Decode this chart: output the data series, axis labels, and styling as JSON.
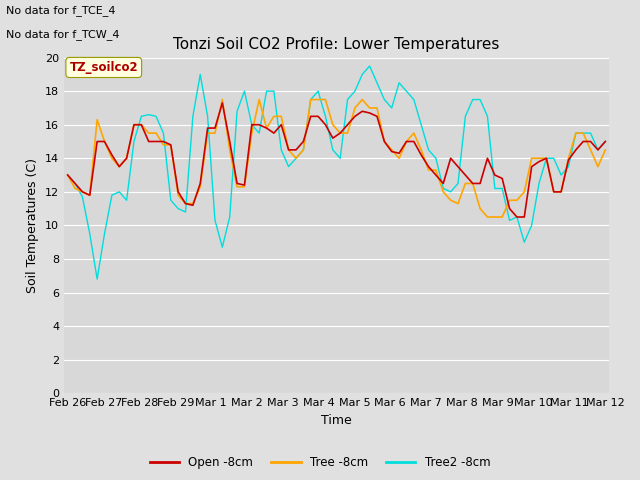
{
  "title": "Tonzi Soil CO2 Profile: Lower Temperatures",
  "ylabel": "Soil Temperatures (C)",
  "xlabel": "Time",
  "annotation_line1": "No data for f_TCE_4",
  "annotation_line2": "No data for f_TCW_4",
  "legend_label_box": "TZ_soilco2",
  "legend_entries": [
    "Open -8cm",
    "Tree -8cm",
    "Tree2 -8cm"
  ],
  "legend_colors": [
    "#cc0000",
    "#ffa500",
    "#00dddd"
  ],
  "ylim": [
    0,
    20
  ],
  "yticks": [
    0,
    2,
    4,
    6,
    8,
    10,
    12,
    14,
    16,
    18,
    20
  ],
  "xtick_labels": [
    "Feb 26",
    "Feb 27",
    "Feb 28",
    "Feb 29",
    "Mar 1",
    "Mar 2",
    "Mar 3",
    "Mar 4",
    "Mar 5",
    "Mar 6",
    "Mar 7",
    "Mar 8",
    "Mar 9",
    "Mar 10",
    "Mar 11",
    "Mar 12"
  ],
  "background_color": "#e0e0e0",
  "plot_bg_color": "#d8d8d8",
  "grid_color": "#ffffff",
  "open_8cm": [
    13.0,
    12.5,
    12.0,
    11.8,
    15.0,
    15.0,
    14.2,
    13.5,
    14.0,
    16.0,
    16.0,
    15.0,
    15.0,
    15.0,
    14.8,
    12.0,
    11.3,
    11.2,
    12.5,
    15.8,
    15.8,
    17.3,
    15.0,
    12.5,
    12.4,
    16.0,
    16.0,
    15.8,
    15.5,
    16.0,
    14.5,
    14.5,
    15.0,
    16.5,
    16.5,
    16.0,
    15.2,
    15.5,
    16.0,
    16.5,
    16.8,
    16.7,
    16.5,
    15.0,
    14.4,
    14.3,
    15.0,
    15.0,
    14.2,
    13.5,
    13.0,
    12.5,
    14.0,
    13.5,
    13.0,
    12.5,
    12.5,
    14.0,
    13.0,
    12.8,
    11.0,
    10.5,
    10.5,
    13.5,
    13.8,
    14.0,
    12.0,
    12.0,
    13.9,
    14.5,
    15.0,
    15.0,
    14.5,
    15.0
  ],
  "tree_8cm": [
    13.0,
    12.2,
    12.0,
    11.8,
    16.3,
    15.0,
    14.0,
    13.5,
    14.0,
    16.0,
    16.0,
    15.5,
    15.5,
    14.8,
    14.8,
    11.8,
    11.3,
    11.3,
    12.3,
    15.5,
    15.5,
    17.5,
    14.5,
    12.3,
    12.3,
    15.5,
    17.5,
    15.8,
    16.5,
    16.5,
    14.5,
    14.0,
    14.5,
    17.5,
    17.5,
    17.5,
    16.0,
    15.5,
    15.5,
    17.0,
    17.5,
    17.0,
    17.0,
    15.0,
    14.5,
    14.0,
    15.0,
    15.5,
    14.5,
    13.3,
    13.3,
    12.0,
    11.5,
    11.3,
    12.5,
    12.5,
    11.0,
    10.5,
    10.5,
    10.5,
    11.5,
    11.5,
    12.0,
    14.0,
    14.0,
    14.0,
    12.0,
    12.0,
    14.0,
    15.5,
    15.5,
    14.5,
    13.5,
    14.5
  ],
  "tree2_8cm": [
    13.0,
    12.5,
    11.7,
    9.5,
    6.8,
    9.5,
    11.8,
    12.0,
    11.5,
    15.0,
    16.5,
    16.6,
    16.5,
    15.5,
    11.5,
    11.0,
    10.8,
    16.5,
    19.0,
    16.5,
    10.3,
    8.7,
    10.5,
    16.8,
    18.0,
    16.0,
    15.5,
    18.0,
    18.0,
    14.5,
    13.5,
    14.0,
    14.5,
    17.5,
    18.0,
    16.5,
    14.5,
    14.0,
    17.5,
    18.0,
    19.0,
    19.5,
    18.5,
    17.5,
    17.0,
    18.5,
    18.0,
    17.5,
    16.0,
    14.5,
    14.0,
    12.2,
    12.0,
    12.5,
    16.5,
    17.5,
    17.5,
    16.5,
    12.2,
    12.2,
    10.3,
    10.5,
    9.0,
    10.0,
    12.5,
    14.0,
    14.0,
    13.0,
    13.5,
    15.5,
    15.5,
    15.5,
    14.5,
    15.0
  ]
}
